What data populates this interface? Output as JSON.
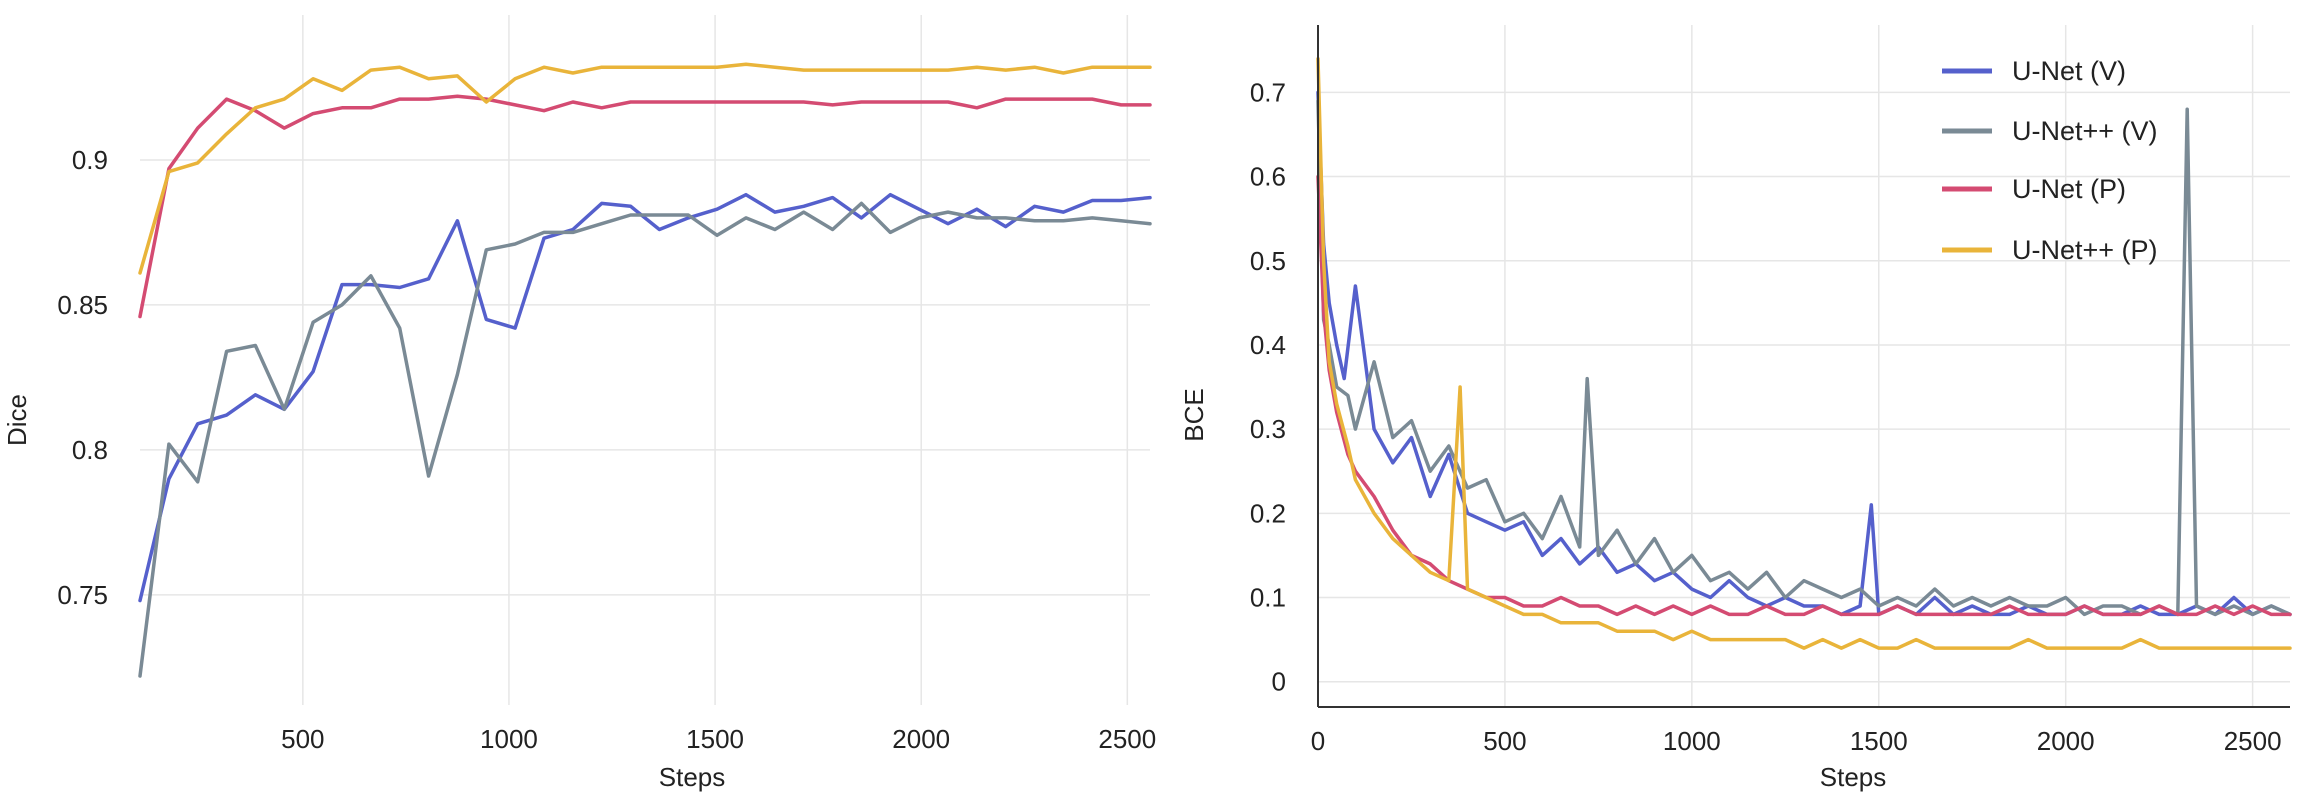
{
  "colors": {
    "unet_v": "#5560CC",
    "unetpp_v": "#7A8A95",
    "unet_p": "#D44B72",
    "unetpp_p": "#E9B43A"
  },
  "chart_data": [
    {
      "type": "line",
      "title": "",
      "xlabel": "Steps",
      "ylabel": "Dice",
      "xlim": [
        105,
        2555
      ],
      "ylim": [
        0.712,
        0.95
      ],
      "xticks": [
        500,
        1000,
        1500,
        2000,
        2500
      ],
      "yticks": [
        0.75,
        0.8,
        0.85,
        0.9
      ],
      "grid": true,
      "legend": "none",
      "series": [
        {
          "color_key": "unet_v",
          "x": [
            105,
            175,
            245,
            315,
            385,
            455,
            525,
            595,
            665,
            735,
            805,
            875,
            945,
            1015,
            1085,
            1155,
            1225,
            1295,
            1365,
            1435,
            1505,
            1575,
            1645,
            1715,
            1785,
            1855,
            1925,
            1995,
            2065,
            2135,
            2205,
            2275,
            2345,
            2415,
            2485,
            2555
          ],
          "y": [
            0.748,
            0.79,
            0.809,
            0.812,
            0.819,
            0.814,
            0.827,
            0.857,
            0.857,
            0.856,
            0.859,
            0.879,
            0.845,
            0.842,
            0.873,
            0.876,
            0.885,
            0.884,
            0.876,
            0.88,
            0.883,
            0.888,
            0.882,
            0.884,
            0.887,
            0.88,
            0.888,
            0.883,
            0.878,
            0.883,
            0.877,
            0.884,
            0.882,
            0.886,
            0.886,
            0.887
          ]
        },
        {
          "color_key": "unetpp_v",
          "x": [
            105,
            175,
            245,
            315,
            385,
            455,
            525,
            595,
            665,
            735,
            805,
            875,
            945,
            1015,
            1085,
            1155,
            1225,
            1295,
            1365,
            1435,
            1505,
            1575,
            1645,
            1715,
            1785,
            1855,
            1925,
            1995,
            2065,
            2135,
            2205,
            2275,
            2345,
            2415,
            2485,
            2555
          ],
          "y": [
            0.722,
            0.802,
            0.789,
            0.834,
            0.836,
            0.814,
            0.844,
            0.85,
            0.86,
            0.842,
            0.791,
            0.826,
            0.869,
            0.871,
            0.875,
            0.875,
            0.878,
            0.881,
            0.881,
            0.881,
            0.874,
            0.88,
            0.876,
            0.882,
            0.876,
            0.885,
            0.875,
            0.88,
            0.882,
            0.88,
            0.88,
            0.879,
            0.879,
            0.88,
            0.879,
            0.878
          ]
        },
        {
          "color_key": "unet_p",
          "x": [
            105,
            175,
            245,
            315,
            385,
            455,
            525,
            595,
            665,
            735,
            805,
            875,
            945,
            1015,
            1085,
            1155,
            1225,
            1295,
            1365,
            1435,
            1505,
            1575,
            1645,
            1715,
            1785,
            1855,
            1925,
            1995,
            2065,
            2135,
            2205,
            2275,
            2345,
            2415,
            2485,
            2555
          ],
          "y": [
            0.846,
            0.897,
            0.911,
            0.921,
            0.917,
            0.911,
            0.916,
            0.918,
            0.918,
            0.921,
            0.921,
            0.922,
            0.921,
            0.919,
            0.917,
            0.92,
            0.918,
            0.92,
            0.92,
            0.92,
            0.92,
            0.92,
            0.92,
            0.92,
            0.919,
            0.92,
            0.92,
            0.92,
            0.92,
            0.918,
            0.921,
            0.921,
            0.921,
            0.921,
            0.919,
            0.919
          ]
        },
        {
          "color_key": "unetpp_p",
          "x": [
            105,
            175,
            245,
            315,
            385,
            455,
            525,
            595,
            665,
            735,
            805,
            875,
            945,
            1015,
            1085,
            1155,
            1225,
            1295,
            1365,
            1435,
            1505,
            1575,
            1645,
            1715,
            1785,
            1855,
            1925,
            1995,
            2065,
            2135,
            2205,
            2275,
            2345,
            2415,
            2485,
            2555
          ],
          "y": [
            0.861,
            0.896,
            0.899,
            0.909,
            0.918,
            0.921,
            0.928,
            0.924,
            0.931,
            0.932,
            0.928,
            0.929,
            0.92,
            0.928,
            0.932,
            0.93,
            0.932,
            0.932,
            0.932,
            0.932,
            0.932,
            0.933,
            0.932,
            0.931,
            0.931,
            0.931,
            0.931,
            0.931,
            0.931,
            0.932,
            0.931,
            0.932,
            0.93,
            0.932,
            0.932,
            0.932
          ]
        }
      ]
    },
    {
      "type": "line",
      "title": "",
      "xlabel": "Steps",
      "ylabel": "BCE",
      "xlim": [
        0,
        2600
      ],
      "ylim": [
        -0.03,
        0.78
      ],
      "xticks": [
        0,
        500,
        1000,
        1500,
        2000,
        2500
      ],
      "yticks": [
        0,
        0.1,
        0.2,
        0.3,
        0.4,
        0.5,
        0.6,
        0.7
      ],
      "grid": true,
      "legend": "top-right",
      "series": [
        {
          "name": "U-Net (V)",
          "color_key": "unet_v",
          "x": [
            0,
            15,
            30,
            50,
            70,
            100,
            150,
            200,
            250,
            300,
            350,
            400,
            450,
            500,
            550,
            600,
            650,
            700,
            750,
            800,
            850,
            900,
            950,
            1000,
            1050,
            1100,
            1150,
            1200,
            1250,
            1300,
            1350,
            1400,
            1450,
            1480,
            1500,
            1550,
            1600,
            1650,
            1700,
            1750,
            1800,
            1850,
            1900,
            1950,
            2000,
            2050,
            2100,
            2150,
            2200,
            2250,
            2300,
            2350,
            2400,
            2450,
            2500,
            2550,
            2600
          ],
          "y": [
            0.7,
            0.52,
            0.45,
            0.4,
            0.36,
            0.47,
            0.3,
            0.26,
            0.29,
            0.22,
            0.27,
            0.2,
            0.19,
            0.18,
            0.19,
            0.15,
            0.17,
            0.14,
            0.16,
            0.13,
            0.14,
            0.12,
            0.13,
            0.11,
            0.1,
            0.12,
            0.1,
            0.09,
            0.1,
            0.09,
            0.09,
            0.08,
            0.09,
            0.21,
            0.08,
            0.09,
            0.08,
            0.1,
            0.08,
            0.09,
            0.08,
            0.08,
            0.09,
            0.08,
            0.08,
            0.09,
            0.08,
            0.08,
            0.09,
            0.08,
            0.08,
            0.09,
            0.08,
            0.1,
            0.08,
            0.09,
            0.08
          ]
        },
        {
          "name": "U-Net++ (V)",
          "color_key": "unetpp_v",
          "x": [
            0,
            15,
            30,
            50,
            80,
            100,
            150,
            200,
            250,
            300,
            350,
            400,
            450,
            500,
            550,
            600,
            650,
            700,
            720,
            750,
            800,
            850,
            900,
            950,
            1000,
            1050,
            1100,
            1150,
            1200,
            1250,
            1300,
            1350,
            1400,
            1450,
            1500,
            1550,
            1600,
            1650,
            1700,
            1750,
            1800,
            1850,
            1900,
            1950,
            2000,
            2050,
            2100,
            2150,
            2200,
            2250,
            2300,
            2325,
            2350,
            2400,
            2450,
            2500,
            2550,
            2600
          ],
          "y": [
            0.69,
            0.43,
            0.4,
            0.35,
            0.34,
            0.3,
            0.38,
            0.29,
            0.31,
            0.25,
            0.28,
            0.23,
            0.24,
            0.19,
            0.2,
            0.17,
            0.22,
            0.16,
            0.36,
            0.15,
            0.18,
            0.14,
            0.17,
            0.13,
            0.15,
            0.12,
            0.13,
            0.11,
            0.13,
            0.1,
            0.12,
            0.11,
            0.1,
            0.11,
            0.09,
            0.1,
            0.09,
            0.11,
            0.09,
            0.1,
            0.09,
            0.1,
            0.09,
            0.09,
            0.1,
            0.08,
            0.09,
            0.09,
            0.08,
            0.09,
            0.08,
            0.68,
            0.09,
            0.08,
            0.09,
            0.08,
            0.09,
            0.08
          ]
        },
        {
          "name": "U-Net (P)",
          "color_key": "unet_p",
          "x": [
            0,
            15,
            30,
            50,
            80,
            100,
            150,
            200,
            250,
            300,
            350,
            400,
            450,
            500,
            550,
            600,
            650,
            700,
            750,
            800,
            850,
            900,
            950,
            1000,
            1050,
            1100,
            1150,
            1200,
            1250,
            1300,
            1350,
            1400,
            1450,
            1500,
            1550,
            1600,
            1650,
            1700,
            1750,
            1800,
            1850,
            1900,
            1950,
            2000,
            2050,
            2100,
            2150,
            2200,
            2250,
            2300,
            2350,
            2400,
            2450,
            2500,
            2550,
            2600
          ],
          "y": [
            0.6,
            0.44,
            0.37,
            0.32,
            0.27,
            0.25,
            0.22,
            0.18,
            0.15,
            0.14,
            0.12,
            0.11,
            0.1,
            0.1,
            0.09,
            0.09,
            0.1,
            0.09,
            0.09,
            0.08,
            0.09,
            0.08,
            0.09,
            0.08,
            0.09,
            0.08,
            0.08,
            0.09,
            0.08,
            0.08,
            0.09,
            0.08,
            0.08,
            0.08,
            0.09,
            0.08,
            0.08,
            0.08,
            0.08,
            0.08,
            0.09,
            0.08,
            0.08,
            0.08,
            0.09,
            0.08,
            0.08,
            0.08,
            0.09,
            0.08,
            0.08,
            0.09,
            0.08,
            0.09,
            0.08,
            0.08
          ]
        },
        {
          "name": "U-Net++ (P)",
          "color_key": "unetpp_p",
          "x": [
            0,
            15,
            30,
            50,
            80,
            100,
            150,
            200,
            250,
            300,
            350,
            380,
            400,
            450,
            500,
            550,
            600,
            650,
            700,
            750,
            800,
            850,
            900,
            950,
            1000,
            1050,
            1100,
            1150,
            1200,
            1250,
            1300,
            1350,
            1400,
            1450,
            1500,
            1550,
            1600,
            1650,
            1700,
            1750,
            1800,
            1850,
            1900,
            1950,
            2000,
            2050,
            2100,
            2150,
            2200,
            2250,
            2300,
            2350,
            2400,
            2450,
            2500,
            2550,
            2600
          ],
          "y": [
            0.74,
            0.5,
            0.38,
            0.33,
            0.28,
            0.24,
            0.2,
            0.17,
            0.15,
            0.13,
            0.12,
            0.35,
            0.11,
            0.1,
            0.09,
            0.08,
            0.08,
            0.07,
            0.07,
            0.07,
            0.06,
            0.06,
            0.06,
            0.05,
            0.06,
            0.05,
            0.05,
            0.05,
            0.05,
            0.05,
            0.04,
            0.05,
            0.04,
            0.05,
            0.04,
            0.04,
            0.05,
            0.04,
            0.04,
            0.04,
            0.04,
            0.04,
            0.05,
            0.04,
            0.04,
            0.04,
            0.04,
            0.04,
            0.05,
            0.04,
            0.04,
            0.04,
            0.04,
            0.04,
            0.04,
            0.04,
            0.04
          ]
        }
      ]
    }
  ]
}
